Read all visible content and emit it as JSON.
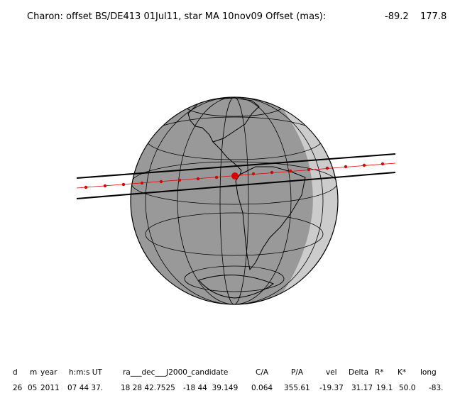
{
  "header": {
    "title": "Charon: offset BS/DE413 01Jul11, star MA 10nov09  Offset (mas):",
    "offset_x": "-89.2",
    "offset_y": "177.8"
  },
  "table": {
    "columns": [
      "d",
      "m",
      "year",
      "h:m:s UT",
      "ra___dec___J2000_candidate",
      "C/A",
      "P/A",
      "vel",
      "Delta",
      "R*",
      "K*",
      "long"
    ],
    "row": [
      "26",
      "05",
      "2011",
      "07 44 37.",
      "18 28 42.7525",
      "-18 44  39.149",
      "0.064",
      "355.61",
      "-19.37",
      "31.17",
      "19.1",
      "50.0",
      "-83."
    ]
  }
}
